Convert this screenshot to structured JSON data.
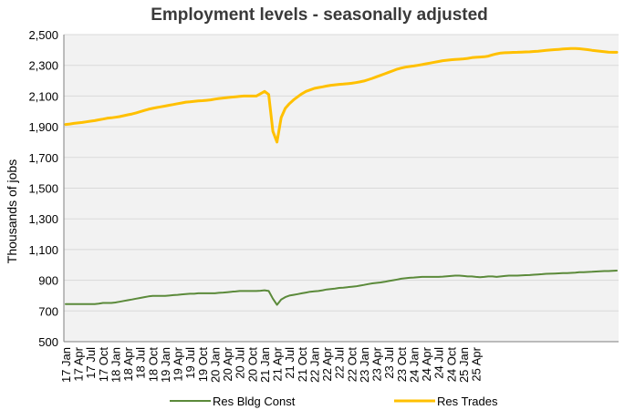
{
  "chart_data": {
    "type": "line",
    "title": "Employment levels - seasonally adjusted",
    "xlabel": "",
    "ylabel": "Thousands  of jobs",
    "ylim": [
      500,
      2500
    ],
    "yticks": [
      500,
      700,
      900,
      1100,
      1300,
      1500,
      1700,
      1900,
      2100,
      2300,
      2500
    ],
    "ytick_labels": [
      "500",
      "700",
      "900",
      "1,100",
      "1,300",
      "1,500",
      "1,700",
      "1,900",
      "2,100",
      "2,300",
      "2,500"
    ],
    "xtick_labels": [
      "17 Jan",
      "17 Apr",
      "17 Jul",
      "17 Oct",
      "18 Jan",
      "18 Apr",
      "18 Jul",
      "18 Oct",
      "19 Jan",
      "19 Apr",
      "19 Jul",
      "19 Oct",
      "20 Jan",
      "20 Apr",
      "20 Jul",
      "20 Oct",
      "21 Jan",
      "21 Apr",
      "21 Jul",
      "21 Oct",
      "22 Jan",
      "22 Apr",
      "22 Jul",
      "22 Oct",
      "23 Jan",
      "23 Apr",
      "23 Jul",
      "23 Oct",
      "24 Jan",
      "24 Apr",
      "24 Jul",
      "24 Oct",
      "25 Jan",
      "25 Apr"
    ],
    "grid": true,
    "legend_position": "bottom",
    "colors": {
      "plot_background": "#f2f2f2",
      "grid": "#d9d9d9",
      "axis": "#7f7f7f"
    },
    "series": [
      {
        "name": "Res Bldg Const",
        "color": "#5b8a3a",
        "line_width": 2,
        "values": [
          745,
          745,
          745,
          745,
          745,
          745,
          745,
          745,
          748,
          752,
          752,
          752,
          755,
          760,
          765,
          770,
          775,
          780,
          785,
          790,
          795,
          798,
          798,
          798,
          798,
          800,
          803,
          805,
          808,
          810,
          812,
          812,
          815,
          815,
          815,
          815,
          815,
          818,
          820,
          822,
          825,
          827,
          830,
          830,
          830,
          830,
          830,
          832,
          835,
          830,
          780,
          740,
          775,
          790,
          800,
          805,
          810,
          815,
          820,
          825,
          828,
          830,
          835,
          840,
          843,
          846,
          850,
          852,
          855,
          858,
          860,
          865,
          870,
          875,
          880,
          883,
          886,
          890,
          895,
          900,
          905,
          910,
          913,
          916,
          918,
          920,
          922,
          922,
          922,
          922,
          922,
          924,
          926,
          928,
          930,
          930,
          928,
          925,
          925,
          922,
          920,
          922,
          925,
          925,
          922,
          925,
          928,
          930,
          930,
          930,
          932,
          933,
          934,
          936,
          938,
          940,
          942,
          943,
          944,
          945,
          946,
          947,
          948,
          950,
          952,
          953,
          954,
          955,
          957,
          959,
          960,
          960,
          962,
          963
        ]
      },
      {
        "name": "Res Trades",
        "color": "#ffc000",
        "line_width": 3,
        "values": [
          1915,
          1918,
          1922,
          1925,
          1928,
          1932,
          1936,
          1940,
          1945,
          1950,
          1955,
          1958,
          1962,
          1966,
          1972,
          1978,
          1983,
          1990,
          1998,
          2006,
          2014,
          2020,
          2025,
          2030,
          2035,
          2040,
          2045,
          2050,
          2055,
          2060,
          2062,
          2065,
          2068,
          2070,
          2072,
          2075,
          2080,
          2084,
          2087,
          2090,
          2093,
          2095,
          2098,
          2100,
          2100,
          2100,
          2100,
          2115,
          2130,
          2110,
          1870,
          1800,
          1960,
          2020,
          2050,
          2075,
          2095,
          2115,
          2130,
          2140,
          2150,
          2155,
          2160,
          2165,
          2170,
          2173,
          2176,
          2178,
          2180,
          2183,
          2187,
          2192,
          2198,
          2206,
          2215,
          2225,
          2235,
          2245,
          2255,
          2265,
          2275,
          2282,
          2288,
          2292,
          2296,
          2300,
          2305,
          2310,
          2315,
          2320,
          2325,
          2330,
          2333,
          2336,
          2338,
          2340,
          2342,
          2345,
          2350,
          2352,
          2354,
          2356,
          2360,
          2368,
          2375,
          2380,
          2382,
          2383,
          2384,
          2385,
          2386,
          2387,
          2388,
          2390,
          2392,
          2395,
          2398,
          2400,
          2402,
          2404,
          2406,
          2408,
          2410,
          2410,
          2408,
          2405,
          2402,
          2398,
          2395,
          2392,
          2389,
          2386,
          2385,
          2385
        ]
      }
    ]
  }
}
